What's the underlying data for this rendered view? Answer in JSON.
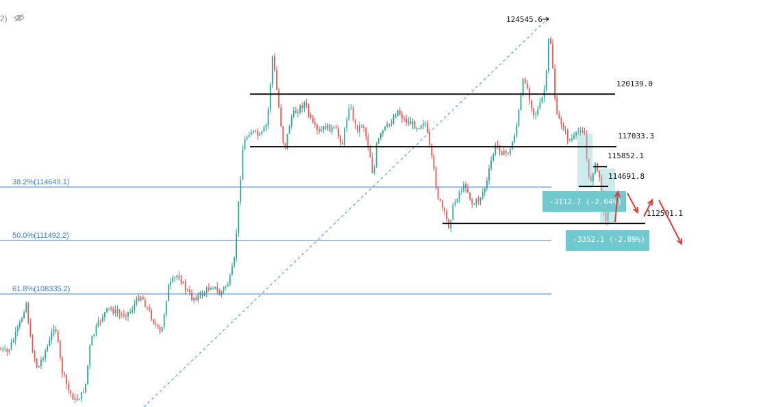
{
  "corner": {
    "text": "2)"
  },
  "chart_data": {
    "type": "candlestick",
    "colors": {
      "up": "#26a69a",
      "down": "#ef5350",
      "hline": "#000000",
      "fib": "#3d7fc6",
      "measure": "#6fc9cf",
      "arrow": "#e53935"
    },
    "ylim": [
      103500,
      125500
    ],
    "peak": {
      "label": "124545.6",
      "value": 124545.6
    },
    "hlines": [
      {
        "label": "120139.0",
        "value": 120139.0
      },
      {
        "label": "117033.3",
        "value": 117033.3
      },
      {
        "label": "115852.1",
        "value": 115852.1
      },
      {
        "label": "114691.8",
        "value": 114691.8
      },
      {
        "label": "112501.1",
        "value": 112501.1
      }
    ],
    "fib_levels": [
      {
        "label": "38.2%(114649.1)",
        "value": 114649.1
      },
      {
        "label": "50.0%(111492.2)",
        "value": 111492.2
      },
      {
        "label": "61.8%(108335.2)",
        "value": 108335.2
      }
    ],
    "measurements": [
      {
        "label": "-3112.7 (-2.64%)"
      },
      {
        "label": "-3352.1 (-2.89%)"
      }
    ]
  }
}
